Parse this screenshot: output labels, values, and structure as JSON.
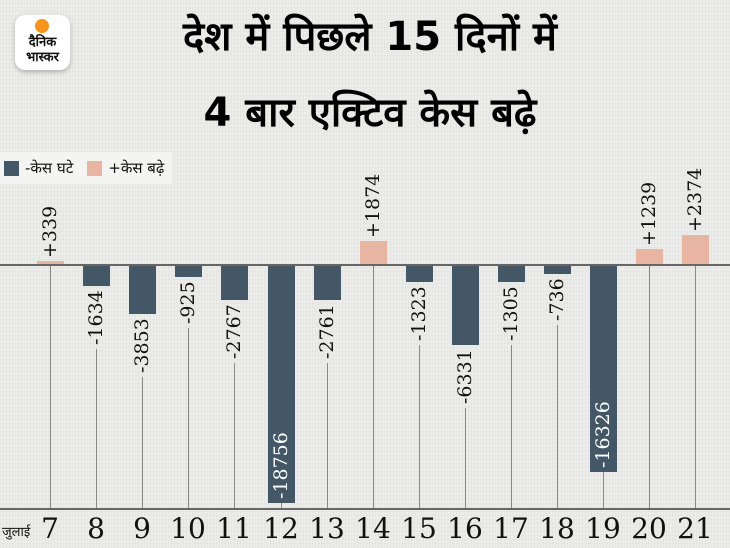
{
  "logo": {
    "line1": "दैनिक",
    "line2": "भास्कर",
    "accent": "#f7941d"
  },
  "title": {
    "line1": "देश में पिछले 15 दिनों में",
    "line2": "4 बार एक्टिव केस बढ़े"
  },
  "legend": {
    "items": [
      {
        "label": "-केस घटे",
        "color": "#435767"
      },
      {
        "label": "+केस बढ़े",
        "color": "#e8b5a2"
      }
    ]
  },
  "x_prefix": "जुलाई",
  "chart_data": {
    "type": "bar",
    "title": "देश में पिछले 15 दिनों में 4 बार एक्टिव केस बढ़े",
    "xlabel": "जुलाई",
    "ylabel": "",
    "categories": [
      "7",
      "8",
      "9",
      "10",
      "11",
      "12",
      "13",
      "14",
      "15",
      "16",
      "17",
      "18",
      "19",
      "20",
      "21"
    ],
    "values": [
      339,
      -1634,
      -3853,
      -925,
      -2767,
      -18756,
      -2761,
      1874,
      -1323,
      -6331,
      -1305,
      -736,
      -16326,
      1239,
      2374
    ],
    "labels": [
      "+339",
      "-1634",
      "-3853",
      "-925",
      "-2767",
      "-18756",
      "-2761",
      "+1874",
      "-1323",
      "-6331",
      "-1305",
      "-736",
      "-16326",
      "+1239",
      "+2374"
    ],
    "series": [
      {
        "name": "-केस घटे",
        "color": "#435767"
      },
      {
        "name": "+केस बढ़े",
        "color": "#e8b5a2"
      }
    ],
    "legend_position": "top-left",
    "grid": "vertical lines per category"
  }
}
